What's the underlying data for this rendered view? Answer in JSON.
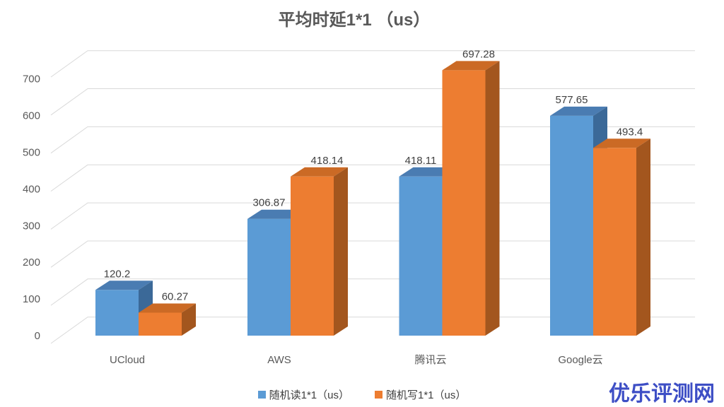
{
  "title": "平均时延1*1 （us）",
  "watermark": {
    "text": "优乐评测网",
    "color": "#3D4EC5"
  },
  "chart_data": {
    "type": "bar",
    "variant": "3d-clustered-column",
    "title": "平均时延1*1 （us）",
    "xlabel": "",
    "ylabel": "",
    "categories": [
      "UCloud",
      "AWS",
      "腾讯云",
      "Google云"
    ],
    "series": [
      {
        "name": "随机读1*1（us）",
        "values": [
          120.2,
          306.87,
          418.11,
          577.65
        ],
        "data_labels": [
          "120.2",
          "306.87",
          "418.11",
          "577.65"
        ],
        "colors": {
          "front": "#5B9BD5",
          "top": "#4A7CB2",
          "side": "#3B6998"
        }
      },
      {
        "name": "随机写1*1（us）",
        "values": [
          60.27,
          418.14,
          697.28,
          493.4
        ],
        "data_labels": [
          "60.27",
          "418.14",
          "697.28",
          "493.4"
        ],
        "colors": {
          "front": "#ED7D31",
          "top": "#CB6A25",
          "side": "#A3561E"
        }
      }
    ],
    "ylim": [
      0,
      700
    ],
    "yticks": [
      0,
      100,
      200,
      300,
      400,
      500,
      600,
      700
    ],
    "grid": true,
    "legend_position": "bottom",
    "gridline_color": "#D9D9D9",
    "axis_label_color": "#595959",
    "data_label_color": "#404040",
    "background_color": "#FFFFFF"
  }
}
